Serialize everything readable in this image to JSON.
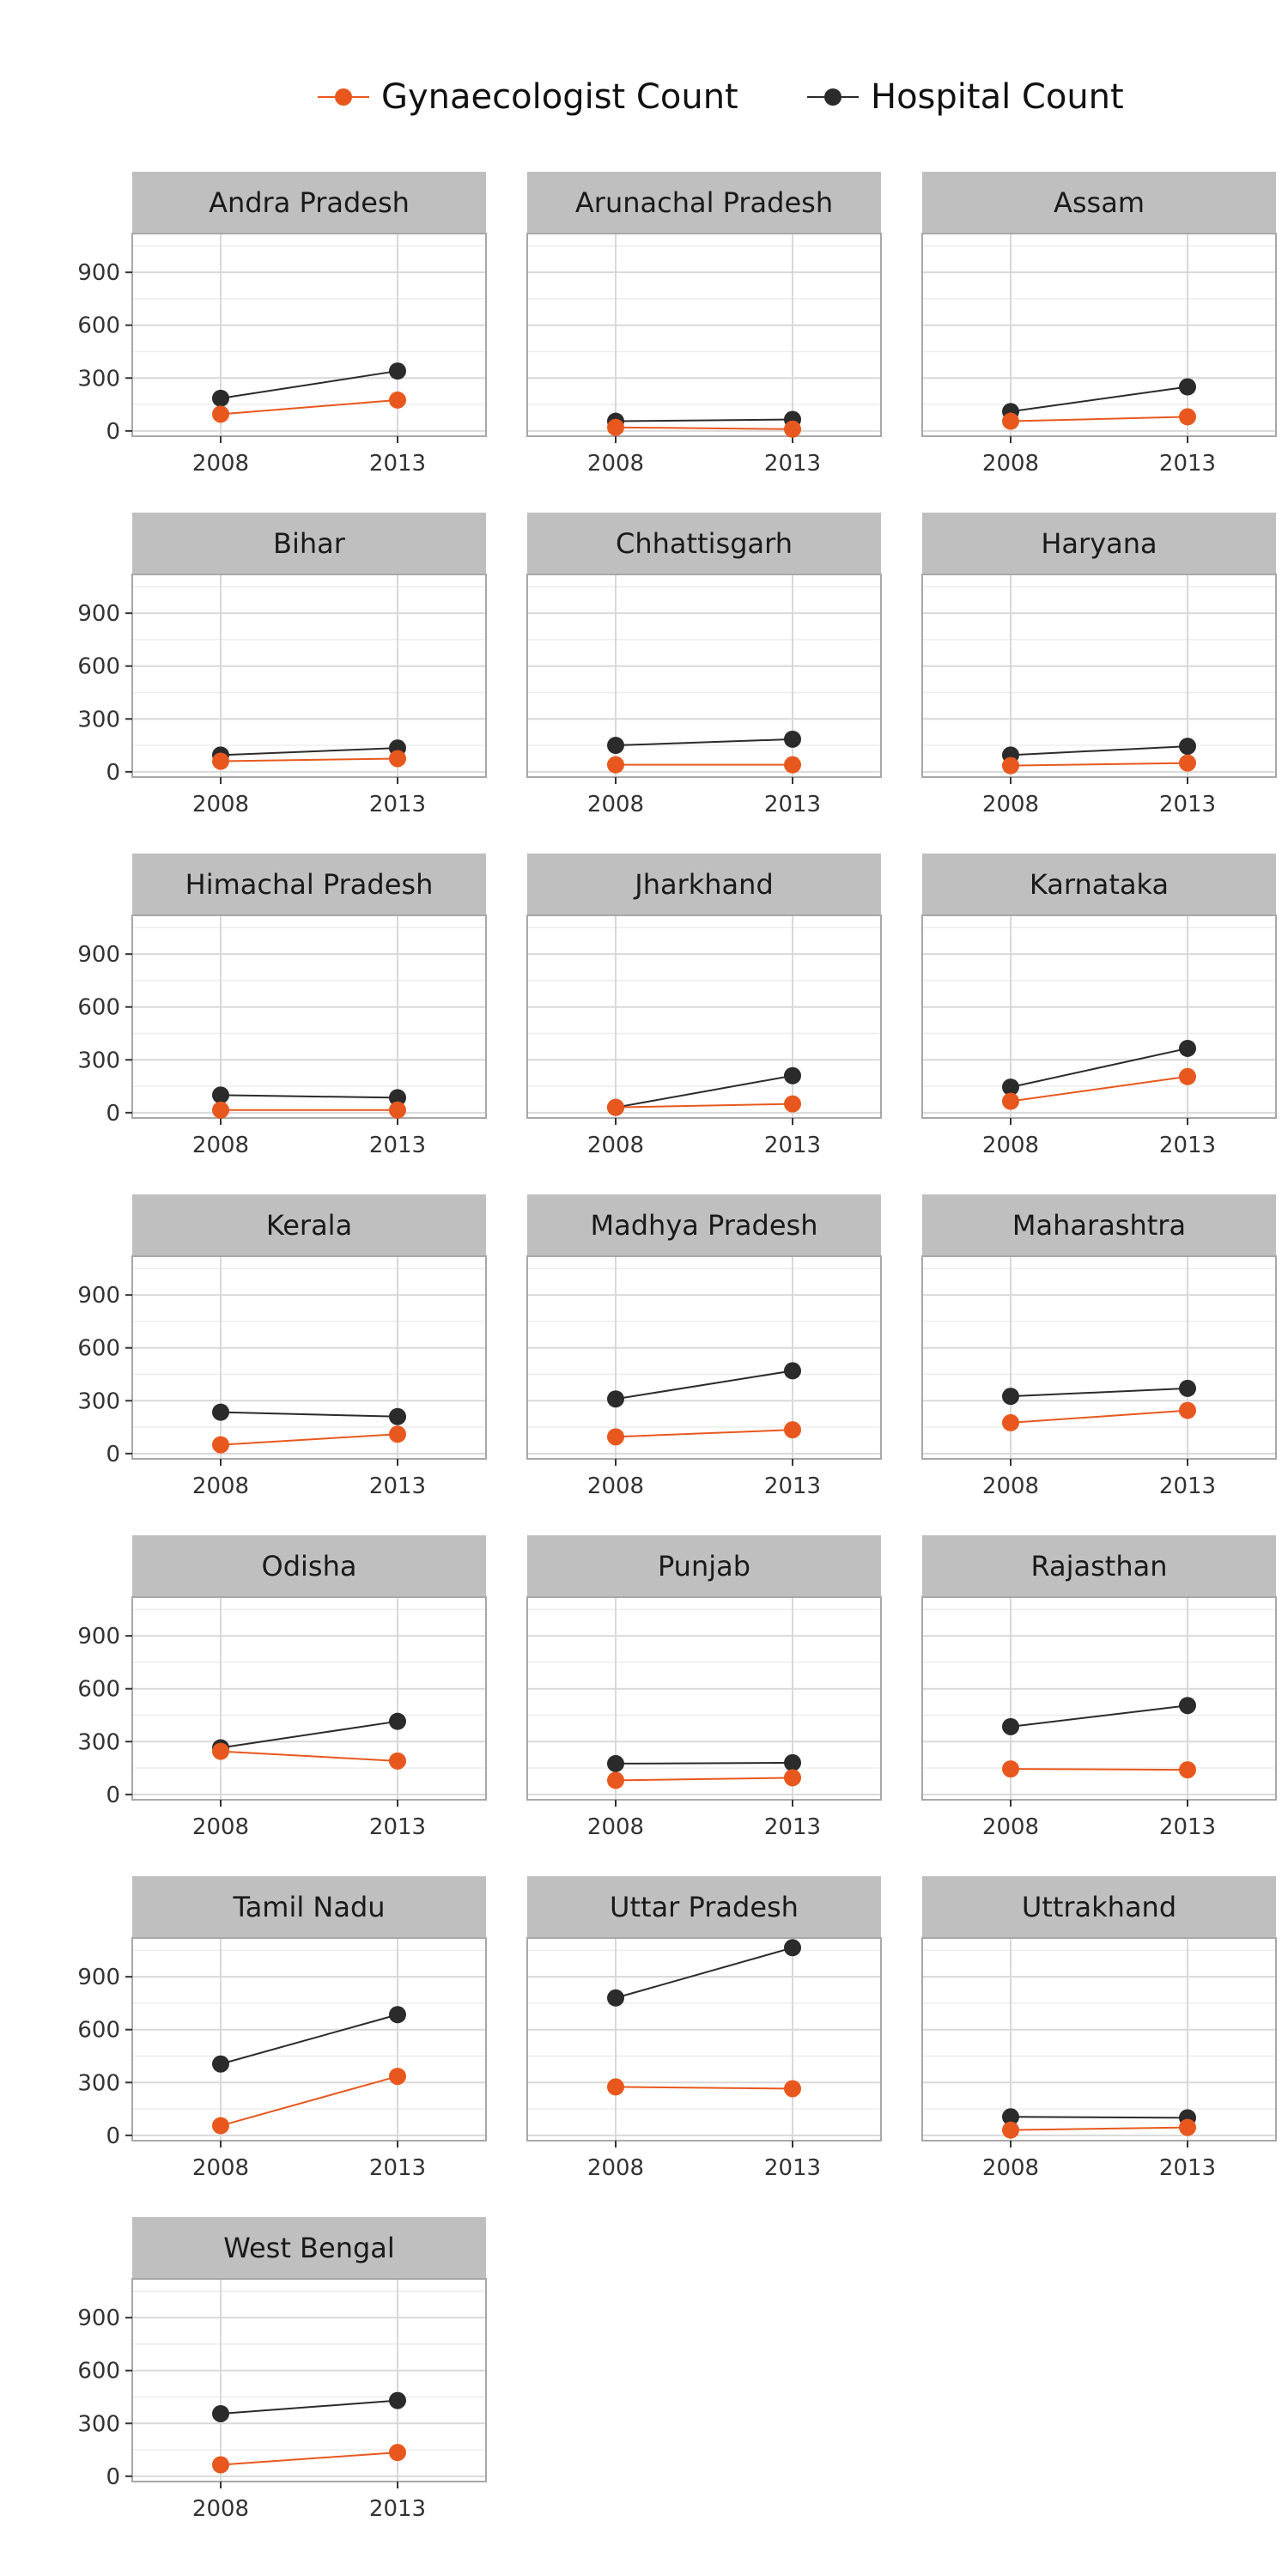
{
  "legend": {
    "items": [
      {
        "label": "Gynaecologist Count",
        "color": "#E8581E"
      },
      {
        "label": "Hospital Count",
        "color": "#2B2B2B"
      }
    ]
  },
  "chart_data": {
    "type": "line",
    "layout": "small-multiples",
    "x_categories": [
      "2008",
      "2013"
    ],
    "y_ticks": [
      0,
      300,
      600,
      900
    ],
    "ylim": [
      -30,
      1120
    ],
    "grid": true,
    "legend_position": "top-right",
    "series_names": [
      "Gynaecologist Count",
      "Hospital Count"
    ],
    "colors": {
      "Gynaecologist Count": "#E8581E",
      "Hospital Count": "#2B2B2B"
    },
    "panels": [
      {
        "title": "Andra Pradesh",
        "gyn": [
          95,
          175
        ],
        "hosp": [
          185,
          340
        ]
      },
      {
        "title": "Arunachal Pradesh",
        "gyn": [
          20,
          10
        ],
        "hosp": [
          55,
          65
        ]
      },
      {
        "title": "Assam",
        "gyn": [
          55,
          80
        ],
        "hosp": [
          110,
          250
        ]
      },
      {
        "title": "Bihar",
        "gyn": [
          60,
          75
        ],
        "hosp": [
          95,
          135
        ]
      },
      {
        "title": "Chhattisgarh",
        "gyn": [
          40,
          40
        ],
        "hosp": [
          150,
          185
        ]
      },
      {
        "title": "Haryana",
        "gyn": [
          35,
          50
        ],
        "hosp": [
          95,
          145
        ]
      },
      {
        "title": "Himachal Pradesh",
        "gyn": [
          15,
          15
        ],
        "hosp": [
          100,
          85
        ]
      },
      {
        "title": "Jharkhand",
        "gyn": [
          30,
          50
        ],
        "hosp": [
          30,
          210
        ]
      },
      {
        "title": "Karnataka",
        "gyn": [
          65,
          205
        ],
        "hosp": [
          145,
          365
        ]
      },
      {
        "title": "Kerala",
        "gyn": [
          50,
          110
        ],
        "hosp": [
          235,
          210
        ]
      },
      {
        "title": "Madhya Pradesh",
        "gyn": [
          95,
          135
        ],
        "hosp": [
          310,
          470
        ]
      },
      {
        "title": "Maharashtra",
        "gyn": [
          175,
          245
        ],
        "hosp": [
          325,
          370
        ]
      },
      {
        "title": "Odisha",
        "gyn": [
          245,
          190
        ],
        "hosp": [
          265,
          415
        ]
      },
      {
        "title": "Punjab",
        "gyn": [
          80,
          95
        ],
        "hosp": [
          175,
          180
        ]
      },
      {
        "title": "Rajasthan",
        "gyn": [
          145,
          140
        ],
        "hosp": [
          385,
          505
        ]
      },
      {
        "title": "Tamil Nadu",
        "gyn": [
          55,
          335
        ],
        "hosp": [
          405,
          685
        ]
      },
      {
        "title": "Uttar Pradesh",
        "gyn": [
          275,
          265
        ],
        "hosp": [
          780,
          1065
        ]
      },
      {
        "title": "Uttrakhand",
        "gyn": [
          30,
          45
        ],
        "hosp": [
          105,
          100
        ]
      },
      {
        "title": "West Bengal",
        "gyn": [
          65,
          135
        ],
        "hosp": [
          355,
          430
        ]
      }
    ]
  }
}
